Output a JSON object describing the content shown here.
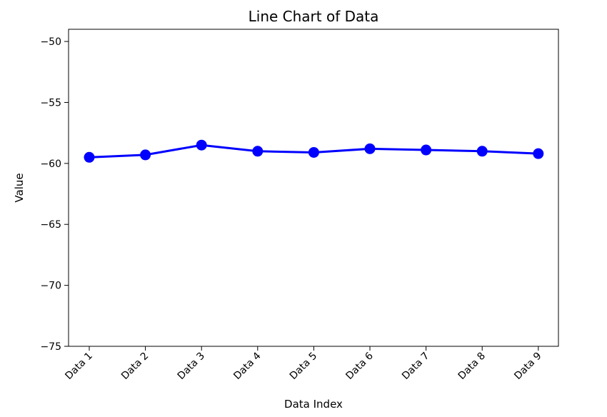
{
  "chart_data": {
    "type": "line",
    "title": "Line Chart of Data",
    "xlabel": "Data Index",
    "ylabel": "Value",
    "categories": [
      "Data 1",
      "Data 2",
      "Data 3",
      "Data 4",
      "Data 5",
      "Data 6",
      "Data 7",
      "Data 8",
      "Data 9"
    ],
    "series": [
      {
        "values": [
          -59.5,
          -59.3,
          -58.5,
          -59.0,
          -59.1,
          -58.8,
          -58.9,
          -59.0,
          -59.2
        ]
      }
    ],
    "ylim": [
      -75,
      -49
    ],
    "yticks": [
      -75,
      -70,
      -65,
      -60,
      -55,
      -50
    ],
    "ytick_labels": [
      "−75",
      "−70",
      "−65",
      "−60",
      "−55",
      "−50"
    ],
    "grid": false,
    "legend": "none",
    "colors": {
      "series": "#0000ff"
    },
    "marker": "circle"
  }
}
